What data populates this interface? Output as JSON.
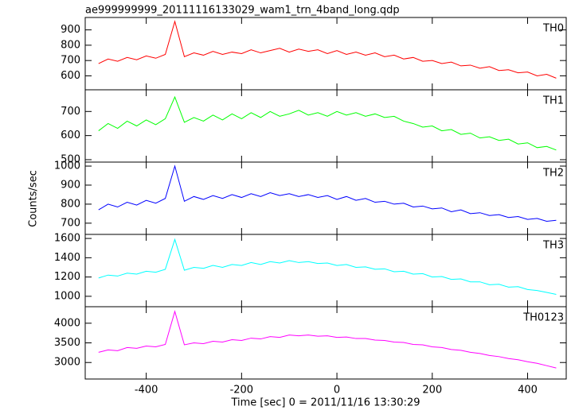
{
  "title": "ae999999999_20111116133029_wam1_trn_4band_long.qdp",
  "ylabel": "Counts/sec",
  "xlabel": "Time [sec] 0 = 2011/11/16 13:30:29",
  "chart_data": [
    {
      "type": "line",
      "xlim": [
        -528,
        481
      ],
      "xticks": [
        -400,
        -200,
        0,
        200,
        400
      ],
      "ylim": [
        509,
        981
      ],
      "yticks": [
        600,
        700,
        800,
        900
      ],
      "x": [
        -500,
        -480,
        -460,
        -440,
        -420,
        -400,
        -380,
        -360,
        -340,
        -320,
        -300,
        -280,
        -260,
        -240,
        -220,
        -200,
        -180,
        -160,
        -140,
        -120,
        -100,
        -80,
        -60,
        -40,
        -20,
        0,
        20,
        40,
        60,
        80,
        100,
        120,
        140,
        160,
        180,
        200,
        220,
        240,
        260,
        280,
        300,
        320,
        340,
        360,
        380,
        400,
        420,
        440,
        460
      ],
      "series": [
        {
          "name": "TH0",
          "color": "#ff0000",
          "values": [
            680,
            710,
            695,
            720,
            705,
            730,
            715,
            740,
            955,
            725,
            750,
            735,
            760,
            740,
            755,
            745,
            770,
            750,
            765,
            780,
            755,
            775,
            760,
            770,
            745,
            765,
            740,
            755,
            735,
            750,
            725,
            735,
            710,
            720,
            695,
            700,
            680,
            690,
            665,
            670,
            650,
            660,
            635,
            640,
            620,
            625,
            600,
            610,
            585
          ]
        }
      ]
    },
    {
      "type": "line",
      "xlim": [
        -528,
        481
      ],
      "xticks": [
        -400,
        -200,
        0,
        200,
        400
      ],
      "ylim": [
        490,
        790
      ],
      "yticks": [
        500,
        600,
        700
      ],
      "x": [
        -500,
        -480,
        -460,
        -440,
        -420,
        -400,
        -380,
        -360,
        -340,
        -320,
        -300,
        -280,
        -260,
        -240,
        -220,
        -200,
        -180,
        -160,
        -140,
        -120,
        -100,
        -80,
        -60,
        -40,
        -20,
        0,
        20,
        40,
        60,
        80,
        100,
        120,
        140,
        160,
        180,
        200,
        220,
        240,
        260,
        280,
        300,
        320,
        340,
        360,
        380,
        400,
        420,
        440,
        460
      ],
      "series": [
        {
          "name": "TH1",
          "color": "#00ff00",
          "values": [
            620,
            650,
            630,
            660,
            640,
            665,
            645,
            670,
            760,
            655,
            675,
            660,
            685,
            665,
            690,
            670,
            695,
            675,
            700,
            680,
            690,
            705,
            685,
            695,
            680,
            700,
            685,
            695,
            680,
            690,
            675,
            680,
            660,
            650,
            635,
            640,
            620,
            625,
            605,
            610,
            590,
            595,
            580,
            585,
            565,
            570,
            550,
            555,
            540
          ]
        }
      ]
    },
    {
      "type": "line",
      "xlim": [
        -528,
        481
      ],
      "xticks": [
        -400,
        -200,
        0,
        200,
        400
      ],
      "ylim": [
        641,
        1021
      ],
      "yticks": [
        700,
        800,
        900,
        1000
      ],
      "x": [
        -500,
        -480,
        -460,
        -440,
        -420,
        -400,
        -380,
        -360,
        -340,
        -320,
        -300,
        -280,
        -260,
        -240,
        -220,
        -200,
        -180,
        -160,
        -140,
        -120,
        -100,
        -80,
        -60,
        -40,
        -20,
        0,
        20,
        40,
        60,
        80,
        100,
        120,
        140,
        160,
        180,
        200,
        220,
        240,
        260,
        280,
        300,
        320,
        340,
        360,
        380,
        400,
        420,
        440,
        460
      ],
      "series": [
        {
          "name": "TH2",
          "color": "#0000ff",
          "values": [
            770,
            800,
            785,
            810,
            795,
            820,
            805,
            830,
            1000,
            815,
            840,
            825,
            845,
            830,
            850,
            835,
            855,
            840,
            860,
            845,
            855,
            840,
            850,
            835,
            845,
            825,
            840,
            820,
            830,
            810,
            815,
            800,
            805,
            785,
            790,
            775,
            780,
            760,
            770,
            750,
            755,
            740,
            745,
            730,
            735,
            720,
            725,
            710,
            715
          ]
        }
      ]
    },
    {
      "type": "line",
      "xlim": [
        -528,
        481
      ],
      "xticks": [
        -400,
        -200,
        0,
        200,
        400
      ],
      "ylim": [
        892,
        1642
      ],
      "yticks": [
        1000,
        1200,
        1400,
        1600
      ],
      "x": [
        -500,
        -480,
        -460,
        -440,
        -420,
        -400,
        -380,
        -360,
        -340,
        -320,
        -300,
        -280,
        -260,
        -240,
        -220,
        -200,
        -180,
        -160,
        -140,
        -120,
        -100,
        -80,
        -60,
        -40,
        -20,
        0,
        20,
        40,
        60,
        80,
        100,
        120,
        140,
        160,
        180,
        200,
        220,
        240,
        260,
        280,
        300,
        320,
        340,
        360,
        380,
        400,
        420,
        440,
        460
      ],
      "series": [
        {
          "name": "TH3",
          "color": "#00ffff",
          "values": [
            1190,
            1220,
            1210,
            1240,
            1230,
            1260,
            1250,
            1280,
            1590,
            1270,
            1300,
            1290,
            1320,
            1300,
            1330,
            1320,
            1350,
            1330,
            1360,
            1345,
            1370,
            1350,
            1360,
            1340,
            1345,
            1320,
            1330,
            1300,
            1305,
            1280,
            1285,
            1255,
            1260,
            1230,
            1235,
            1200,
            1205,
            1175,
            1180,
            1150,
            1150,
            1120,
            1125,
            1095,
            1100,
            1070,
            1060,
            1040,
            1020
          ]
        }
      ]
    },
    {
      "type": "line",
      "xlim": [
        -528,
        481
      ],
      "xticks": [
        -400,
        -200,
        0,
        200,
        400
      ],
      "ylim": [
        2580,
        4420
      ],
      "yticks": [
        3000,
        3500,
        4000
      ],
      "x": [
        -500,
        -480,
        -460,
        -440,
        -420,
        -400,
        -380,
        -360,
        -340,
        -320,
        -300,
        -280,
        -260,
        -240,
        -220,
        -200,
        -180,
        -160,
        -140,
        -120,
        -100,
        -80,
        -60,
        -40,
        -20,
        0,
        20,
        40,
        60,
        80,
        100,
        120,
        140,
        160,
        180,
        200,
        220,
        240,
        260,
        280,
        300,
        320,
        340,
        360,
        380,
        400,
        420,
        440,
        460
      ],
      "series": [
        {
          "name": "TH0123",
          "color": "#ff00ff",
          "values": [
            3260,
            3320,
            3300,
            3380,
            3360,
            3420,
            3400,
            3460,
            4300,
            3450,
            3500,
            3480,
            3540,
            3520,
            3580,
            3560,
            3620,
            3600,
            3660,
            3640,
            3700,
            3680,
            3700,
            3670,
            3680,
            3640,
            3650,
            3610,
            3610,
            3570,
            3560,
            3520,
            3510,
            3460,
            3450,
            3400,
            3380,
            3330,
            3310,
            3260,
            3230,
            3180,
            3150,
            3100,
            3070,
            3020,
            2980,
            2920,
            2860
          ]
        }
      ]
    }
  ]
}
